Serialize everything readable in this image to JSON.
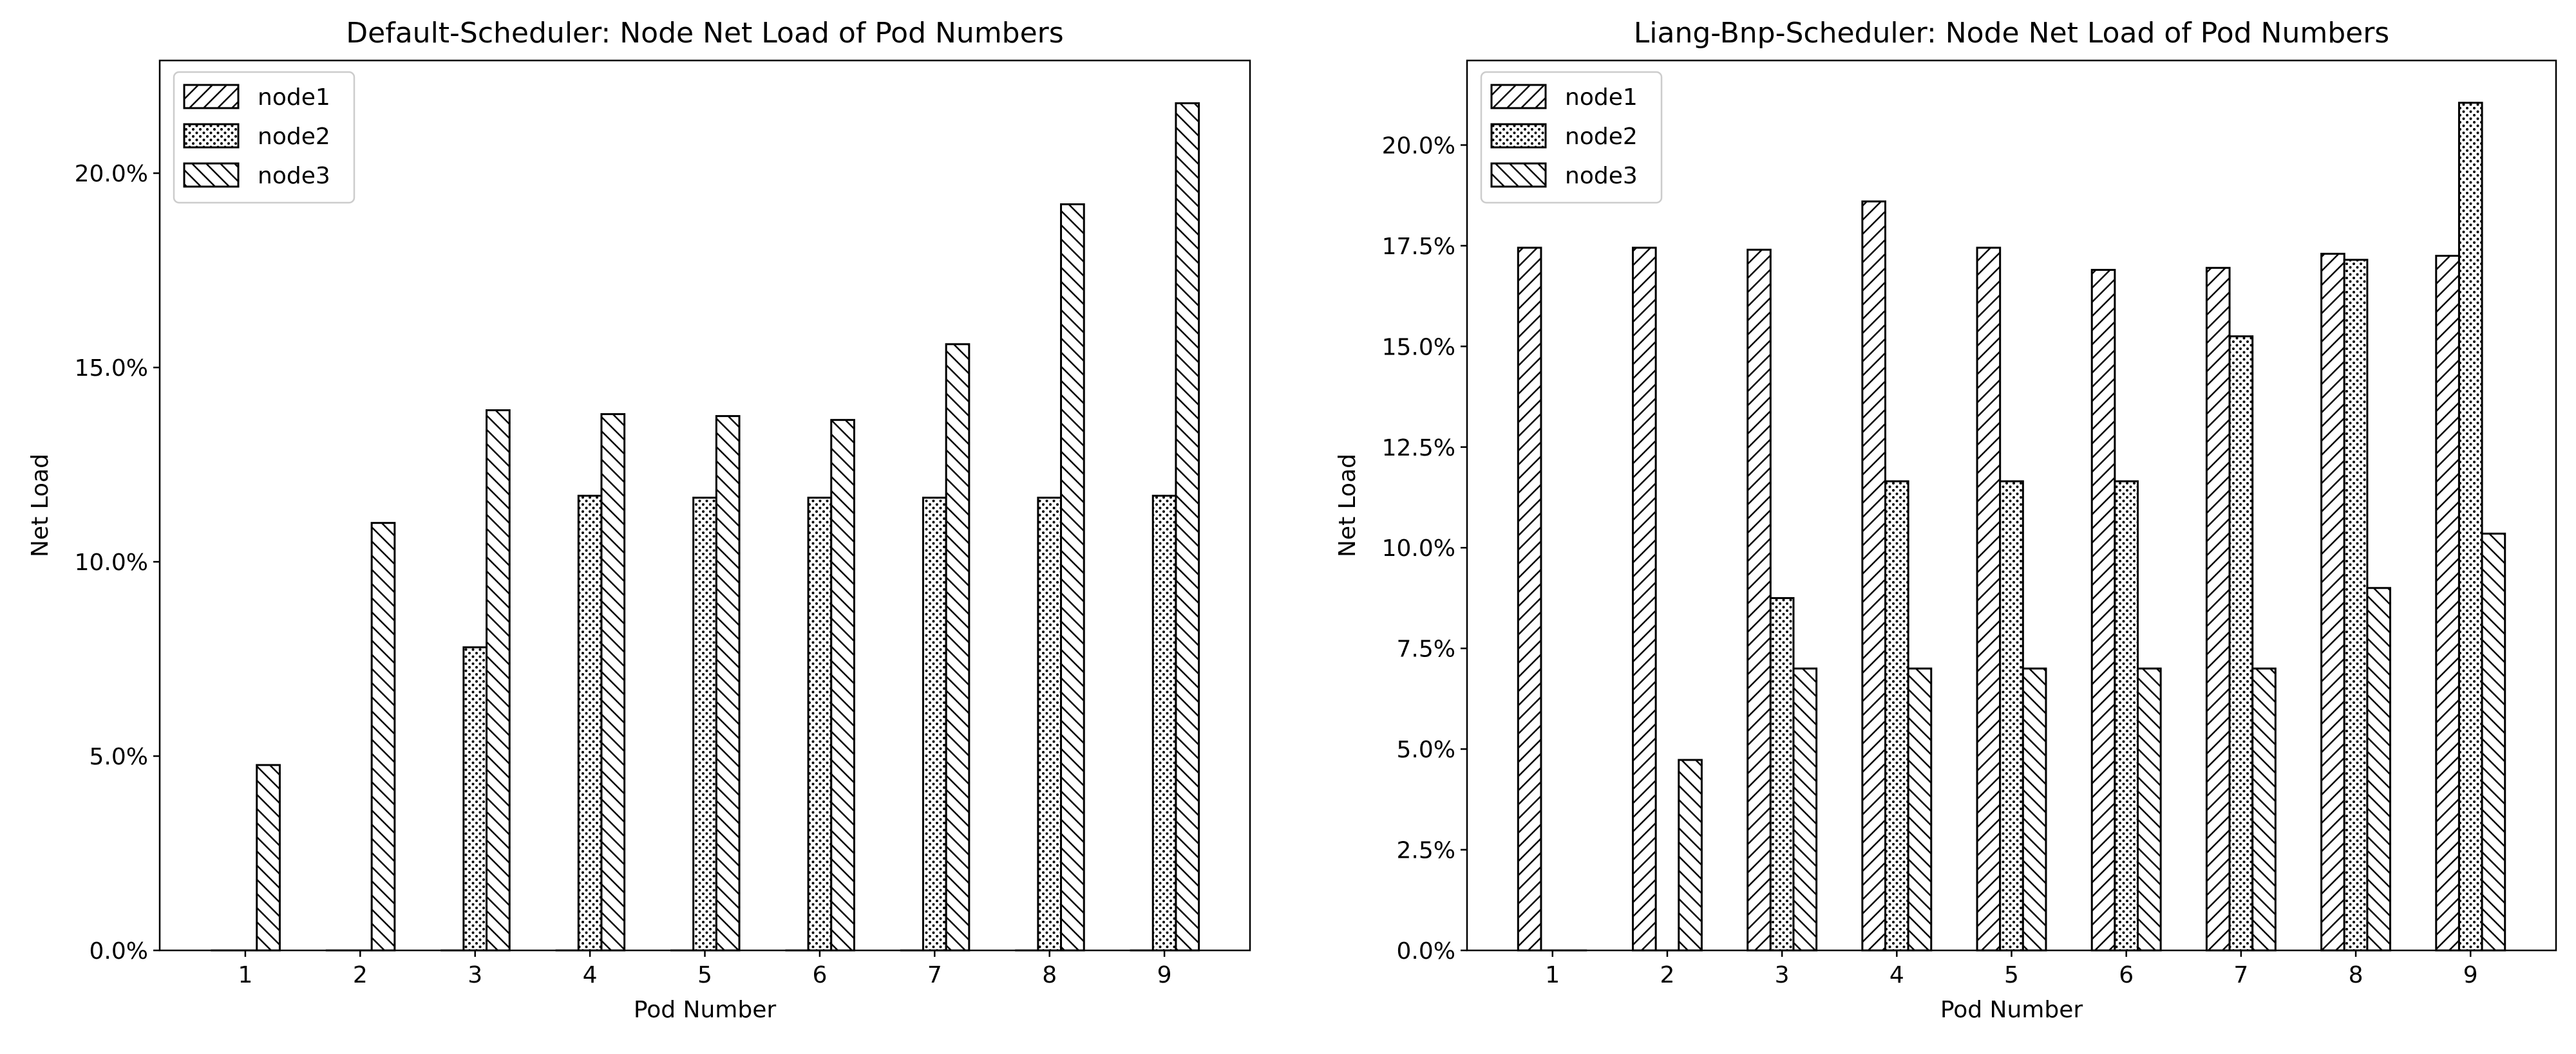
{
  "chart_data": [
    {
      "type": "bar",
      "title": "Default-Scheduler: Node Net Load of Pod Numbers",
      "x_label": "Pod Number",
      "y_label": "Net Load",
      "categories": [
        "1",
        "2",
        "3",
        "4",
        "5",
        "6",
        "7",
        "8",
        "9"
      ],
      "series": [
        {
          "name": "node1",
          "color": "#ffffff",
          "hatch": "/",
          "values": [
            0,
            0,
            0,
            0,
            0,
            0,
            0,
            0,
            0
          ]
        },
        {
          "name": "node2",
          "color": "#ffffff",
          "hatch": ".",
          "values": [
            0,
            0,
            7.8,
            11.7,
            11.65,
            11.65,
            11.65,
            11.65,
            11.7
          ]
        },
        {
          "name": "node3",
          "color": "#ffffff",
          "hatch": "\\",
          "values": [
            4.77,
            11.0,
            13.9,
            13.8,
            13.75,
            13.65,
            15.6,
            19.2,
            21.8
          ]
        }
      ],
      "ylim": [
        0,
        22.9
      ],
      "yticks": [
        {
          "value": 0,
          "label": "0.0%"
        },
        {
          "value": 5,
          "label": "5.0%"
        },
        {
          "value": 10,
          "label": "10.0%"
        },
        {
          "value": 15,
          "label": "15.0%"
        },
        {
          "value": 20,
          "label": "20.0%"
        }
      ],
      "legend": "upper left",
      "grid": false
    },
    {
      "type": "bar",
      "title": "Liang-Bnp-Scheduler: Node Net Load of Pod Numbers",
      "x_label": "Pod Number",
      "y_label": "Net Load",
      "categories": [
        "1",
        "2",
        "3",
        "4",
        "5",
        "6",
        "7",
        "8",
        "9"
      ],
      "series": [
        {
          "name": "node1",
          "color": "#ffffff",
          "hatch": "/",
          "values": [
            17.45,
            17.45,
            17.4,
            18.6,
            17.45,
            16.9,
            16.95,
            17.3,
            17.25
          ]
        },
        {
          "name": "node2",
          "color": "#ffffff",
          "hatch": ".",
          "values": [
            0,
            0,
            8.75,
            11.65,
            11.65,
            11.65,
            15.25,
            17.15,
            21.05
          ]
        },
        {
          "name": "node3",
          "color": "#ffffff",
          "hatch": "\\",
          "values": [
            0,
            4.73,
            7.0,
            7.0,
            7.0,
            7.0,
            7.0,
            9.0,
            10.35
          ]
        }
      ],
      "ylim": [
        0,
        22.1
      ],
      "yticks": [
        {
          "value": 0,
          "label": "0.0%"
        },
        {
          "value": 2.5,
          "label": "2.5%"
        },
        {
          "value": 5,
          "label": "5.0%"
        },
        {
          "value": 7.5,
          "label": "7.5%"
        },
        {
          "value": 10,
          "label": "10.0%"
        },
        {
          "value": 12.5,
          "label": "12.5%"
        },
        {
          "value": 15,
          "label": "15.0%"
        },
        {
          "value": 17.5,
          "label": "17.5%"
        },
        {
          "value": 20,
          "label": "20.0%"
        }
      ],
      "legend": "upper left",
      "grid": false
    }
  ]
}
